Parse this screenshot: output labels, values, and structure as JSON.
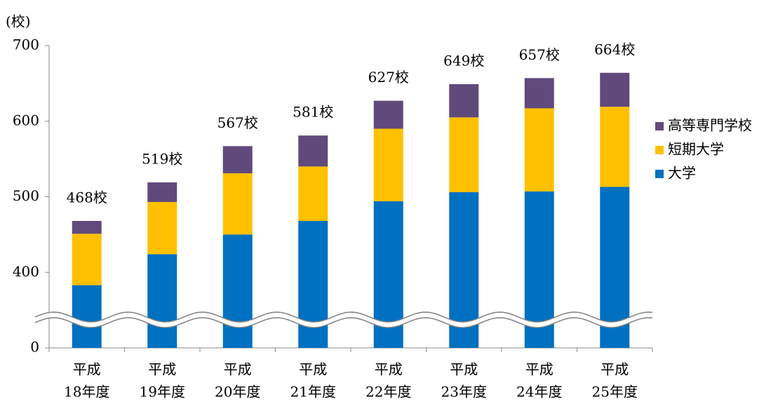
{
  "chart_data": {
    "type": "stacked_bar",
    "y_label": "(校)",
    "categories": [
      [
        "平成",
        "18年度"
      ],
      [
        "平成",
        "19年度"
      ],
      [
        "平成",
        "20年度"
      ],
      [
        "平成",
        "21年度"
      ],
      [
        "平成",
        "22年度"
      ],
      [
        "平成",
        "23年度"
      ],
      [
        "平成",
        "24年度"
      ],
      [
        "平成",
        "25年度"
      ]
    ],
    "series": [
      {
        "name": "大学",
        "color": "#0070c0",
        "values": [
          383,
          424,
          450,
          468,
          494,
          506,
          507,
          513
        ]
      },
      {
        "name": "短期大学",
        "color": "#ffc000",
        "values": [
          68,
          69,
          81,
          72,
          96,
          99,
          110,
          106
        ]
      },
      {
        "name": "高等専門学校",
        "color": "#604a7b",
        "values": [
          17,
          26,
          36,
          41,
          37,
          44,
          40,
          45
        ]
      }
    ],
    "total_labels": [
      "468校",
      "519校",
      "567校",
      "581校",
      "627校",
      "649校",
      "657校",
      "664校"
    ],
    "ylim": [
      0,
      700
    ],
    "axis_break": [
      0,
      300
    ],
    "yticks": [
      0,
      400,
      500,
      600,
      700
    ],
    "legend": "right"
  }
}
